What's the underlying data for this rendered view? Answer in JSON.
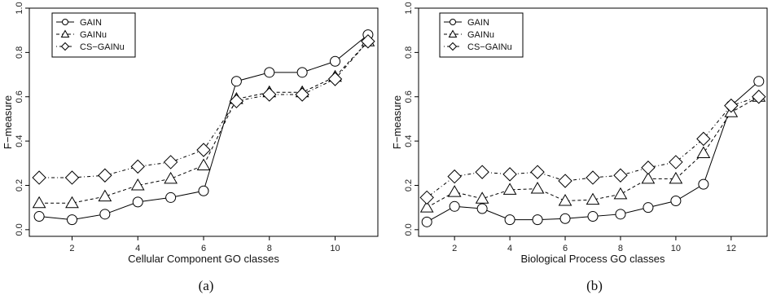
{
  "chart_data": [
    {
      "type": "line",
      "caption": "(a)",
      "xlabel": "Cellular Component GO classes",
      "ylabel": "F−measure",
      "xlim": [
        0.7,
        11.3
      ],
      "ylim": [
        -0.03,
        1.0
      ],
      "xticks": [
        2,
        4,
        6,
        8,
        10
      ],
      "yticks": [
        0.0,
        0.2,
        0.4,
        0.6,
        0.8,
        1.0
      ],
      "ytick_labels": [
        "0.0",
        "0.2",
        "0.4",
        "0.6",
        "0.8",
        "1.0"
      ],
      "legend_position": "top-left",
      "x": [
        1,
        2,
        3,
        4,
        5,
        6,
        7,
        8,
        9,
        10,
        11
      ],
      "series": [
        {
          "name": "GAIN",
          "marker": "circle",
          "linestyle": "solid",
          "values": [
            0.06,
            0.045,
            0.07,
            0.125,
            0.145,
            0.175,
            0.67,
            0.71,
            0.71,
            0.76,
            0.88
          ]
        },
        {
          "name": "GAINu",
          "marker": "triangle",
          "linestyle": "dashed",
          "values": [
            0.12,
            0.12,
            0.15,
            0.2,
            0.23,
            0.29,
            0.59,
            0.62,
            0.62,
            0.69,
            0.85
          ]
        },
        {
          "name": "CS−GAINu",
          "marker": "diamond",
          "linestyle": "dotdash",
          "values": [
            0.235,
            0.235,
            0.245,
            0.285,
            0.305,
            0.36,
            0.58,
            0.61,
            0.61,
            0.68,
            0.85
          ]
        }
      ]
    },
    {
      "type": "line",
      "caption": "(b)",
      "xlabel": "Biological Process GO classes",
      "ylabel": "F−measure",
      "xlim": [
        0.7,
        13.3
      ],
      "ylim": [
        -0.03,
        1.0
      ],
      "xticks": [
        2,
        4,
        6,
        8,
        10,
        12
      ],
      "yticks": [
        0.0,
        0.2,
        0.4,
        0.6,
        0.8,
        1.0
      ],
      "ytick_labels": [
        "0.0",
        "0.2",
        "0.4",
        "0.6",
        "0.8",
        "1.0"
      ],
      "legend_position": "top-left",
      "x": [
        1,
        2,
        3,
        4,
        5,
        6,
        7,
        8,
        9,
        10,
        11,
        12,
        13
      ],
      "series": [
        {
          "name": "GAIN",
          "marker": "circle",
          "linestyle": "solid",
          "values": [
            0.035,
            0.105,
            0.095,
            0.045,
            0.045,
            0.05,
            0.06,
            0.07,
            0.1,
            0.13,
            0.205,
            0.56,
            0.67
          ]
        },
        {
          "name": "GAINu",
          "marker": "triangle",
          "linestyle": "dashed",
          "values": [
            0.1,
            0.17,
            0.14,
            0.18,
            0.185,
            0.13,
            0.135,
            0.16,
            0.23,
            0.23,
            0.345,
            0.53,
            0.6
          ]
        },
        {
          "name": "CS−GAINu",
          "marker": "diamond",
          "linestyle": "dotdash",
          "values": [
            0.145,
            0.24,
            0.26,
            0.25,
            0.26,
            0.22,
            0.235,
            0.245,
            0.28,
            0.305,
            0.41,
            0.56,
            0.6
          ]
        }
      ]
    }
  ]
}
